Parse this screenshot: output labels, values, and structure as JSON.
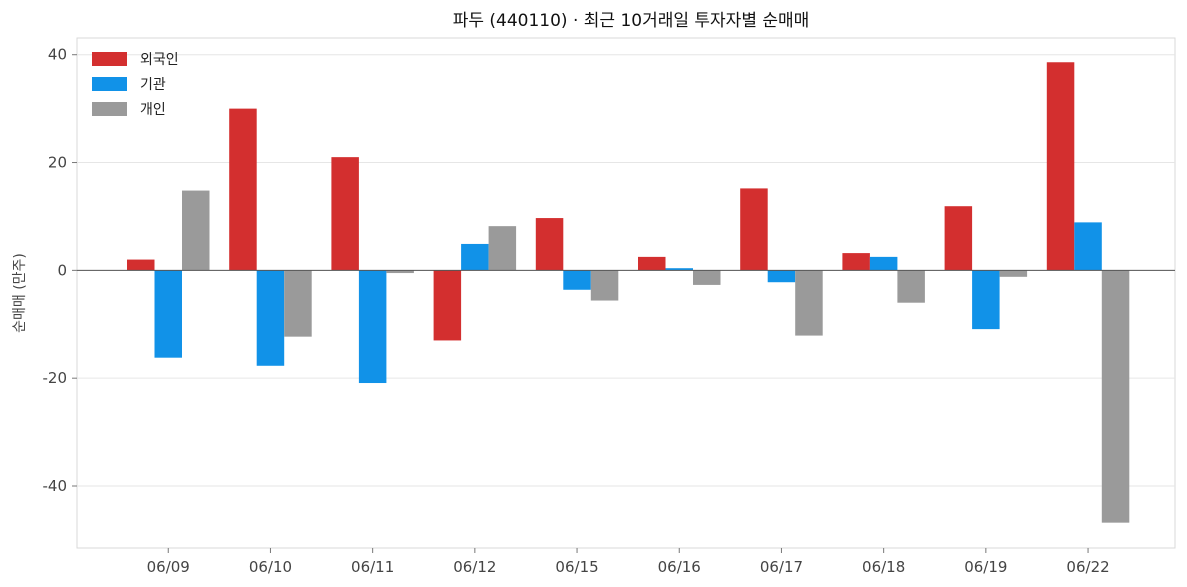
{
  "chart_data": {
    "type": "bar",
    "title": "파두 (440110) · 최근 10거래일 투자자별 순매매",
    "xlabel": "",
    "ylabel": "순매매 (만주)",
    "categories": [
      "06/09",
      "06/10",
      "06/11",
      "06/12",
      "06/15",
      "06/16",
      "06/17",
      "06/18",
      "06/19",
      "06/22"
    ],
    "series": [
      {
        "name": "외국인",
        "color": "#d32f2f",
        "values": [
          2,
          30,
          21,
          -13,
          9.7,
          2.5,
          15.2,
          3.2,
          11.9,
          38.6
        ]
      },
      {
        "name": "기관",
        "color": "#1192e8",
        "values": [
          -16.2,
          -17.7,
          -20.9,
          4.9,
          -3.6,
          0.4,
          -2.2,
          2.5,
          -10.9,
          8.9
        ]
      },
      {
        "name": "개인",
        "color": "#9a9a9a",
        "values": [
          14.8,
          -12.3,
          -0.5,
          8.2,
          -5.6,
          -2.7,
          -12.1,
          -6,
          -1.2,
          -46.8
        ]
      }
    ],
    "yticks": [
      -40,
      -20,
      0,
      20,
      40
    ],
    "ylim": [
      -51.5,
      43.1
    ],
    "grid": true,
    "legend_position": "top-left"
  }
}
